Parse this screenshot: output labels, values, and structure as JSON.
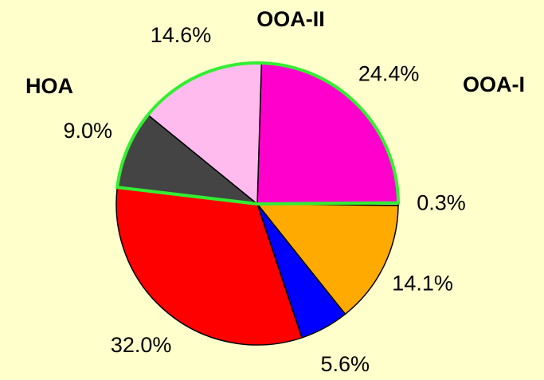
{
  "chart_data": {
    "type": "pie",
    "categories": [
      "OOA-I",
      null,
      null,
      null,
      null,
      "HOA",
      "OOA-II"
    ],
    "values": [
      24.4,
      0.3,
      14.1,
      5.6,
      32.0,
      9.0,
      14.6
    ],
    "value_labels": [
      "24.4%",
      "0.3%",
      "14.1%",
      "5.6%",
      "32.0%",
      "9.0%",
      "14.6%"
    ],
    "colors": [
      "#ff00cc",
      "#ffffff",
      "#ffaa00",
      "#0000ff",
      "#ff0000",
      "#444444",
      "#ffbbee"
    ],
    "highlight_color": "#33ee33"
  }
}
